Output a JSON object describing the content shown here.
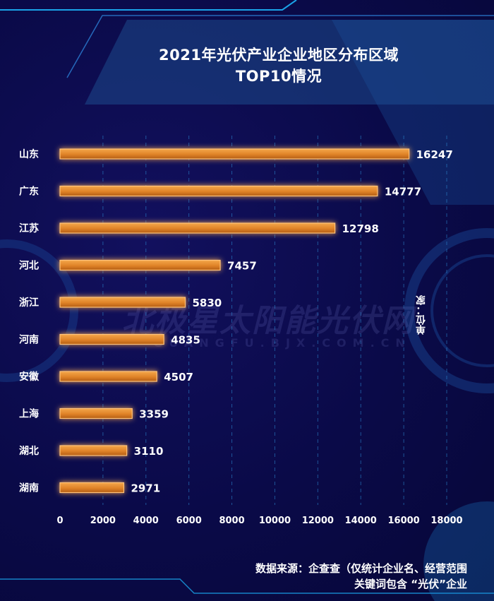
{
  "chart_data": {
    "type": "bar",
    "orientation": "horizontal",
    "title": "2021年光伏产业企业地区分布区域",
    "subtitle": "TOP10情况",
    "unit_label": "单位：家",
    "categories": [
      "山东",
      "广东",
      "江苏",
      "河北",
      "浙江",
      "河南",
      "安徽",
      "上海",
      "湖北",
      "湖南"
    ],
    "values": [
      16247,
      14777,
      12798,
      7457,
      5830,
      4835,
      4507,
      3359,
      3110,
      2971
    ],
    "xlim": [
      0,
      18000
    ],
    "xticks": [
      "0",
      "2000",
      "4000",
      "6000",
      "8000",
      "10000",
      "12000",
      "14000",
      "16000",
      "18000"
    ],
    "grid": "vertical dashed",
    "bar_color": "#e38a2c",
    "glow_color": "#ff9a3a"
  },
  "source": {
    "line1": "数据来源：企查查（仅统计企业名、经营范围",
    "line2": "关键词包含 “光伏”企业"
  },
  "watermark": {
    "main": "北极星太阳能光伏网",
    "sub": "GUANGFU.BJX.COM.CN"
  }
}
